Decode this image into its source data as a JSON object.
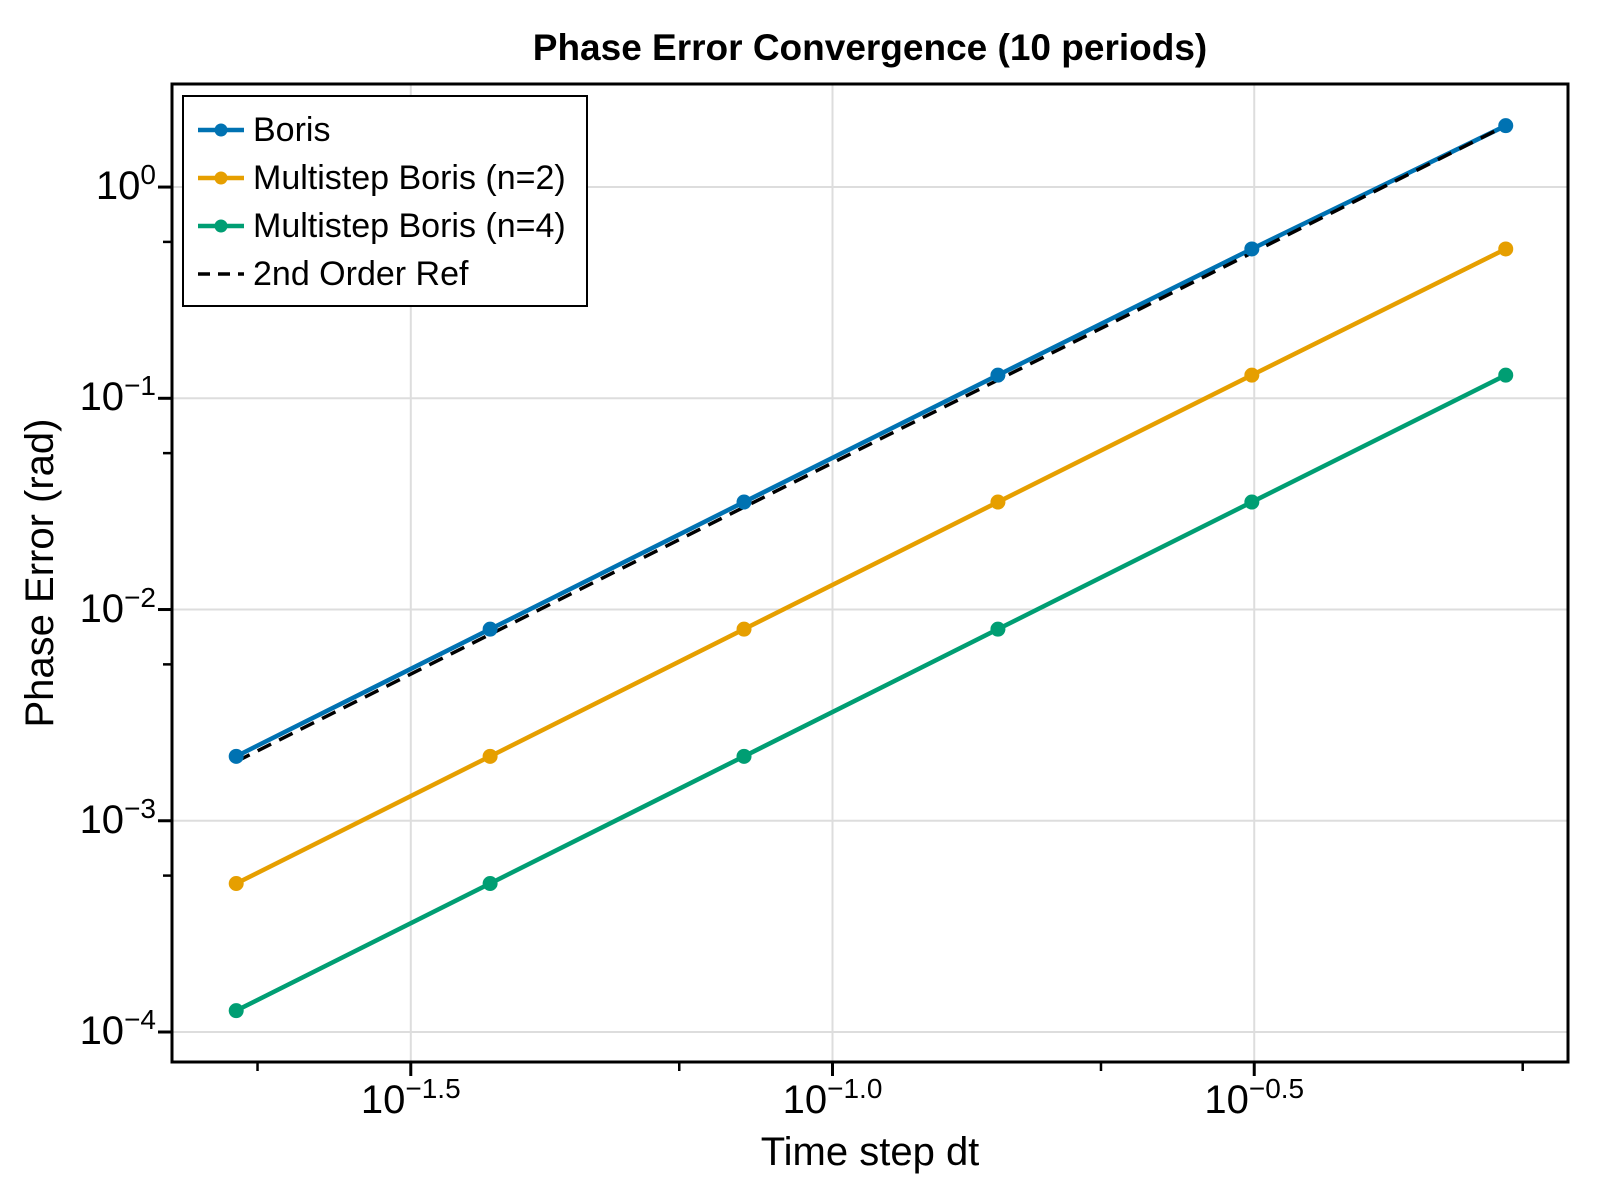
{
  "title": "Phase Error Convergence (10 periods)",
  "colors": {
    "boris_blue": "#0072B2",
    "multistep2_orange": "#E69F00",
    "multistep4_green": "#009E73",
    "reference_black": "#000000",
    "gridline_gray": "#DDDDDD",
    "frame_black": "#000000",
    "background": "#FFFFFF"
  },
  "axes": {
    "x": {
      "label": "Time step dt",
      "scale": "log",
      "tick_labels": [
        {
          "base": "10",
          "exp": "−1.5"
        },
        {
          "base": "10",
          "exp": "−1.0"
        },
        {
          "base": "10",
          "exp": "−0.5"
        }
      ]
    },
    "y": {
      "label": "Phase Error (rad)",
      "scale": "log",
      "tick_labels": [
        {
          "base": "10",
          "exp": "0"
        },
        {
          "base": "10",
          "exp": "−1"
        },
        {
          "base": "10",
          "exp": "−2"
        },
        {
          "base": "10",
          "exp": "−3"
        },
        {
          "base": "10",
          "exp": "−4"
        }
      ]
    }
  },
  "legend": {
    "position": "top-left",
    "items": [
      {
        "label": "Boris",
        "color": "#0072B2",
        "style": "solid",
        "marker": "circle"
      },
      {
        "label": "Multistep Boris (n=2)",
        "color": "#E69F00",
        "style": "solid",
        "marker": "circle"
      },
      {
        "label": "Multistep Boris (n=4)",
        "color": "#009E73",
        "style": "solid",
        "marker": "circle"
      },
      {
        "label": "2nd Order Ref",
        "color": "#000000",
        "style": "dashed",
        "marker": "none"
      }
    ]
  },
  "chart_data": {
    "type": "line",
    "title": "Phase Error Convergence (10 periods)",
    "xlabel": "Time step dt",
    "ylabel": "Phase Error (rad)",
    "x_scale": "log",
    "y_scale": "log",
    "grid": "major",
    "legend_position": "top-left",
    "x": [
      0.019635,
      0.03927,
      0.07854,
      0.15708,
      0.31416,
      0.62832
    ],
    "series": [
      {
        "name": "Boris",
        "color": "#0072B2",
        "style": "solid",
        "marker": "circle",
        "values": [
          0.0020185,
          0.0080727,
          0.032268,
          0.12872,
          0.50926,
          1.9527
        ]
      },
      {
        "name": "Multistep Boris (n=2)",
        "color": "#E69F00",
        "style": "solid",
        "marker": "circle",
        "values": [
          0.00050466,
          0.0020185,
          0.0080727,
          0.032268,
          0.12872,
          0.50926
        ]
      },
      {
        "name": "Multistep Boris (n=4)",
        "color": "#009E73",
        "style": "solid",
        "marker": "circle",
        "values": [
          0.00012617,
          0.00050466,
          0.0020185,
          0.0080727,
          0.032268,
          0.12872
        ]
      },
      {
        "name": "2nd Order Ref",
        "color": "#000000",
        "style": "dashed",
        "marker": "none",
        "values": [
          0.0019069,
          0.0076277,
          0.030511,
          0.12204,
          0.48817,
          1.9527
        ]
      }
    ],
    "xlim": [
      0.016478,
      0.74473
    ],
    "ylim": [
      7.21e-05,
      3.0754
    ],
    "x_major_ticks": [
      0.0316228,
      0.1,
      0.316228
    ],
    "y_major_ticks": [
      1,
      0.1,
      0.01,
      0.001,
      0.0001
    ],
    "x_minor_ticks": [
      0.0208114,
      0.0658114,
      0.2081139,
      0.6581139
    ],
    "y_minor_ticks": [
      0.55,
      0.055,
      0.0055,
      0.00055
    ]
  }
}
